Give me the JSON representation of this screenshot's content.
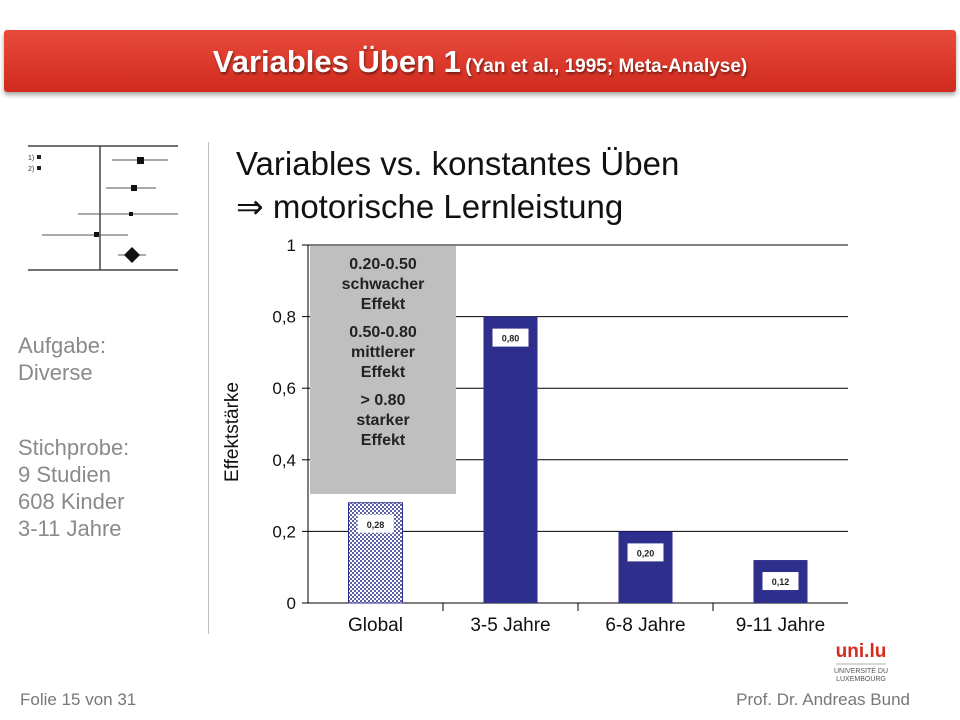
{
  "header": {
    "title": "Variables Üben 1",
    "subtitle": "(Yan et al., 1995; Meta-Analyse)"
  },
  "heading": {
    "line1": "Variables vs. konstantes Üben",
    "arrow": "⇒",
    "line2": "motorische Lernleistung"
  },
  "sidebar": {
    "forest_labels": [
      "1)",
      "2)"
    ],
    "task_label": "Aufgabe:",
    "task_value": "Diverse",
    "sample_label": "Stichprobe:",
    "sample_lines": [
      "9 Studien",
      "608 Kinder",
      "3-11 Jahre"
    ]
  },
  "legend_box": [
    {
      "range": "0.20-0.50",
      "line2": "schwacher",
      "line3": "Effekt"
    },
    {
      "range": "0.50-0.80",
      "line2": "mittlerer",
      "line3": "Effekt"
    },
    {
      "range": "> 0.80",
      "line2": "starker",
      "line3": "Effekt"
    }
  ],
  "chart_data": {
    "type": "bar",
    "categories": [
      "Global",
      "3-5 Jahre",
      "6-8 Jahre",
      "9-11 Jahre"
    ],
    "values": [
      0.28,
      0.8,
      0.2,
      0.12
    ],
    "value_labels": [
      "0,28",
      "0,80",
      "0,20",
      "0,12"
    ],
    "ylabel": "Effektstärke",
    "ylim": [
      0,
      1
    ],
    "yticks": [
      0,
      0.2,
      0.4,
      0.6,
      0.8,
      1
    ],
    "ytick_labels": [
      "0",
      "0,2",
      "0,4",
      "0,6",
      "0,8",
      "1"
    ],
    "grid": true,
    "colors": {
      "bar": "#2e2e8c",
      "global_pattern": "#2e2e8c",
      "grid": "#000000"
    }
  },
  "logo": {
    "mark": "uni.lu",
    "line1": "UNIVERSITÉ DU",
    "line2": "LUXEMBOURG"
  },
  "footer": {
    "left": "Folie 15 von 31",
    "right": "Prof. Dr. Andreas Bund"
  }
}
